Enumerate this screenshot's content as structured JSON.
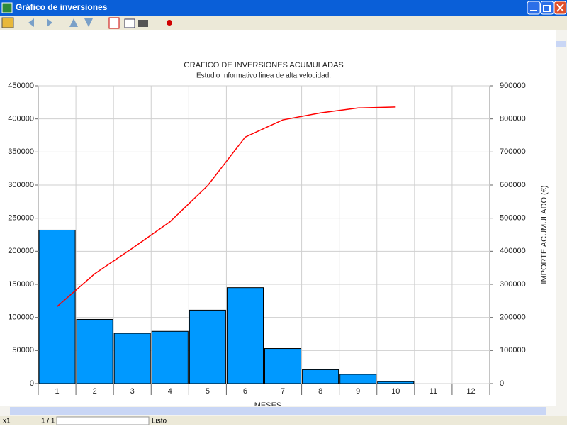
{
  "window": {
    "title": "Gráfico de inversiones"
  },
  "status_bar": {
    "zoom": "x1",
    "page": "1 / 1",
    "state": "Listo"
  },
  "chart_data": {
    "type": "bar",
    "title": "GRAFICO DE INVERSIONES ACUMULADAS",
    "subtitle": "Estudio Informativo linea de alta velocidad.",
    "x_label": "MESES",
    "y2_label": "IMPORTE ACUMULADO (€)",
    "categories": [
      "1",
      "2",
      "3",
      "4",
      "5",
      "6",
      "7",
      "8",
      "9",
      "10",
      "11",
      "12"
    ],
    "series": [
      {
        "type": "bar",
        "color": "#0099ff",
        "values": [
          232000,
          97000,
          76000,
          79000,
          111000,
          145000,
          53000,
          21000,
          14000,
          3000,
          0,
          0
        ]
      },
      {
        "type": "line",
        "color": "#ff0000",
        "axis": "y2",
        "values": [
          233000,
          332000,
          409000,
          489000,
          598000,
          745000,
          797000,
          818000,
          833000,
          836000,
          null,
          null
        ]
      }
    ],
    "ylim": [
      0,
      450000
    ],
    "yticks": [
      0,
      50000,
      100000,
      150000,
      200000,
      250000,
      300000,
      350000,
      400000,
      450000
    ],
    "y2lim": [
      0,
      900000
    ],
    "y2ticks": [
      0,
      100000,
      200000,
      300000,
      400000,
      500000,
      600000,
      700000,
      800000,
      900000
    ],
    "grid": true
  }
}
